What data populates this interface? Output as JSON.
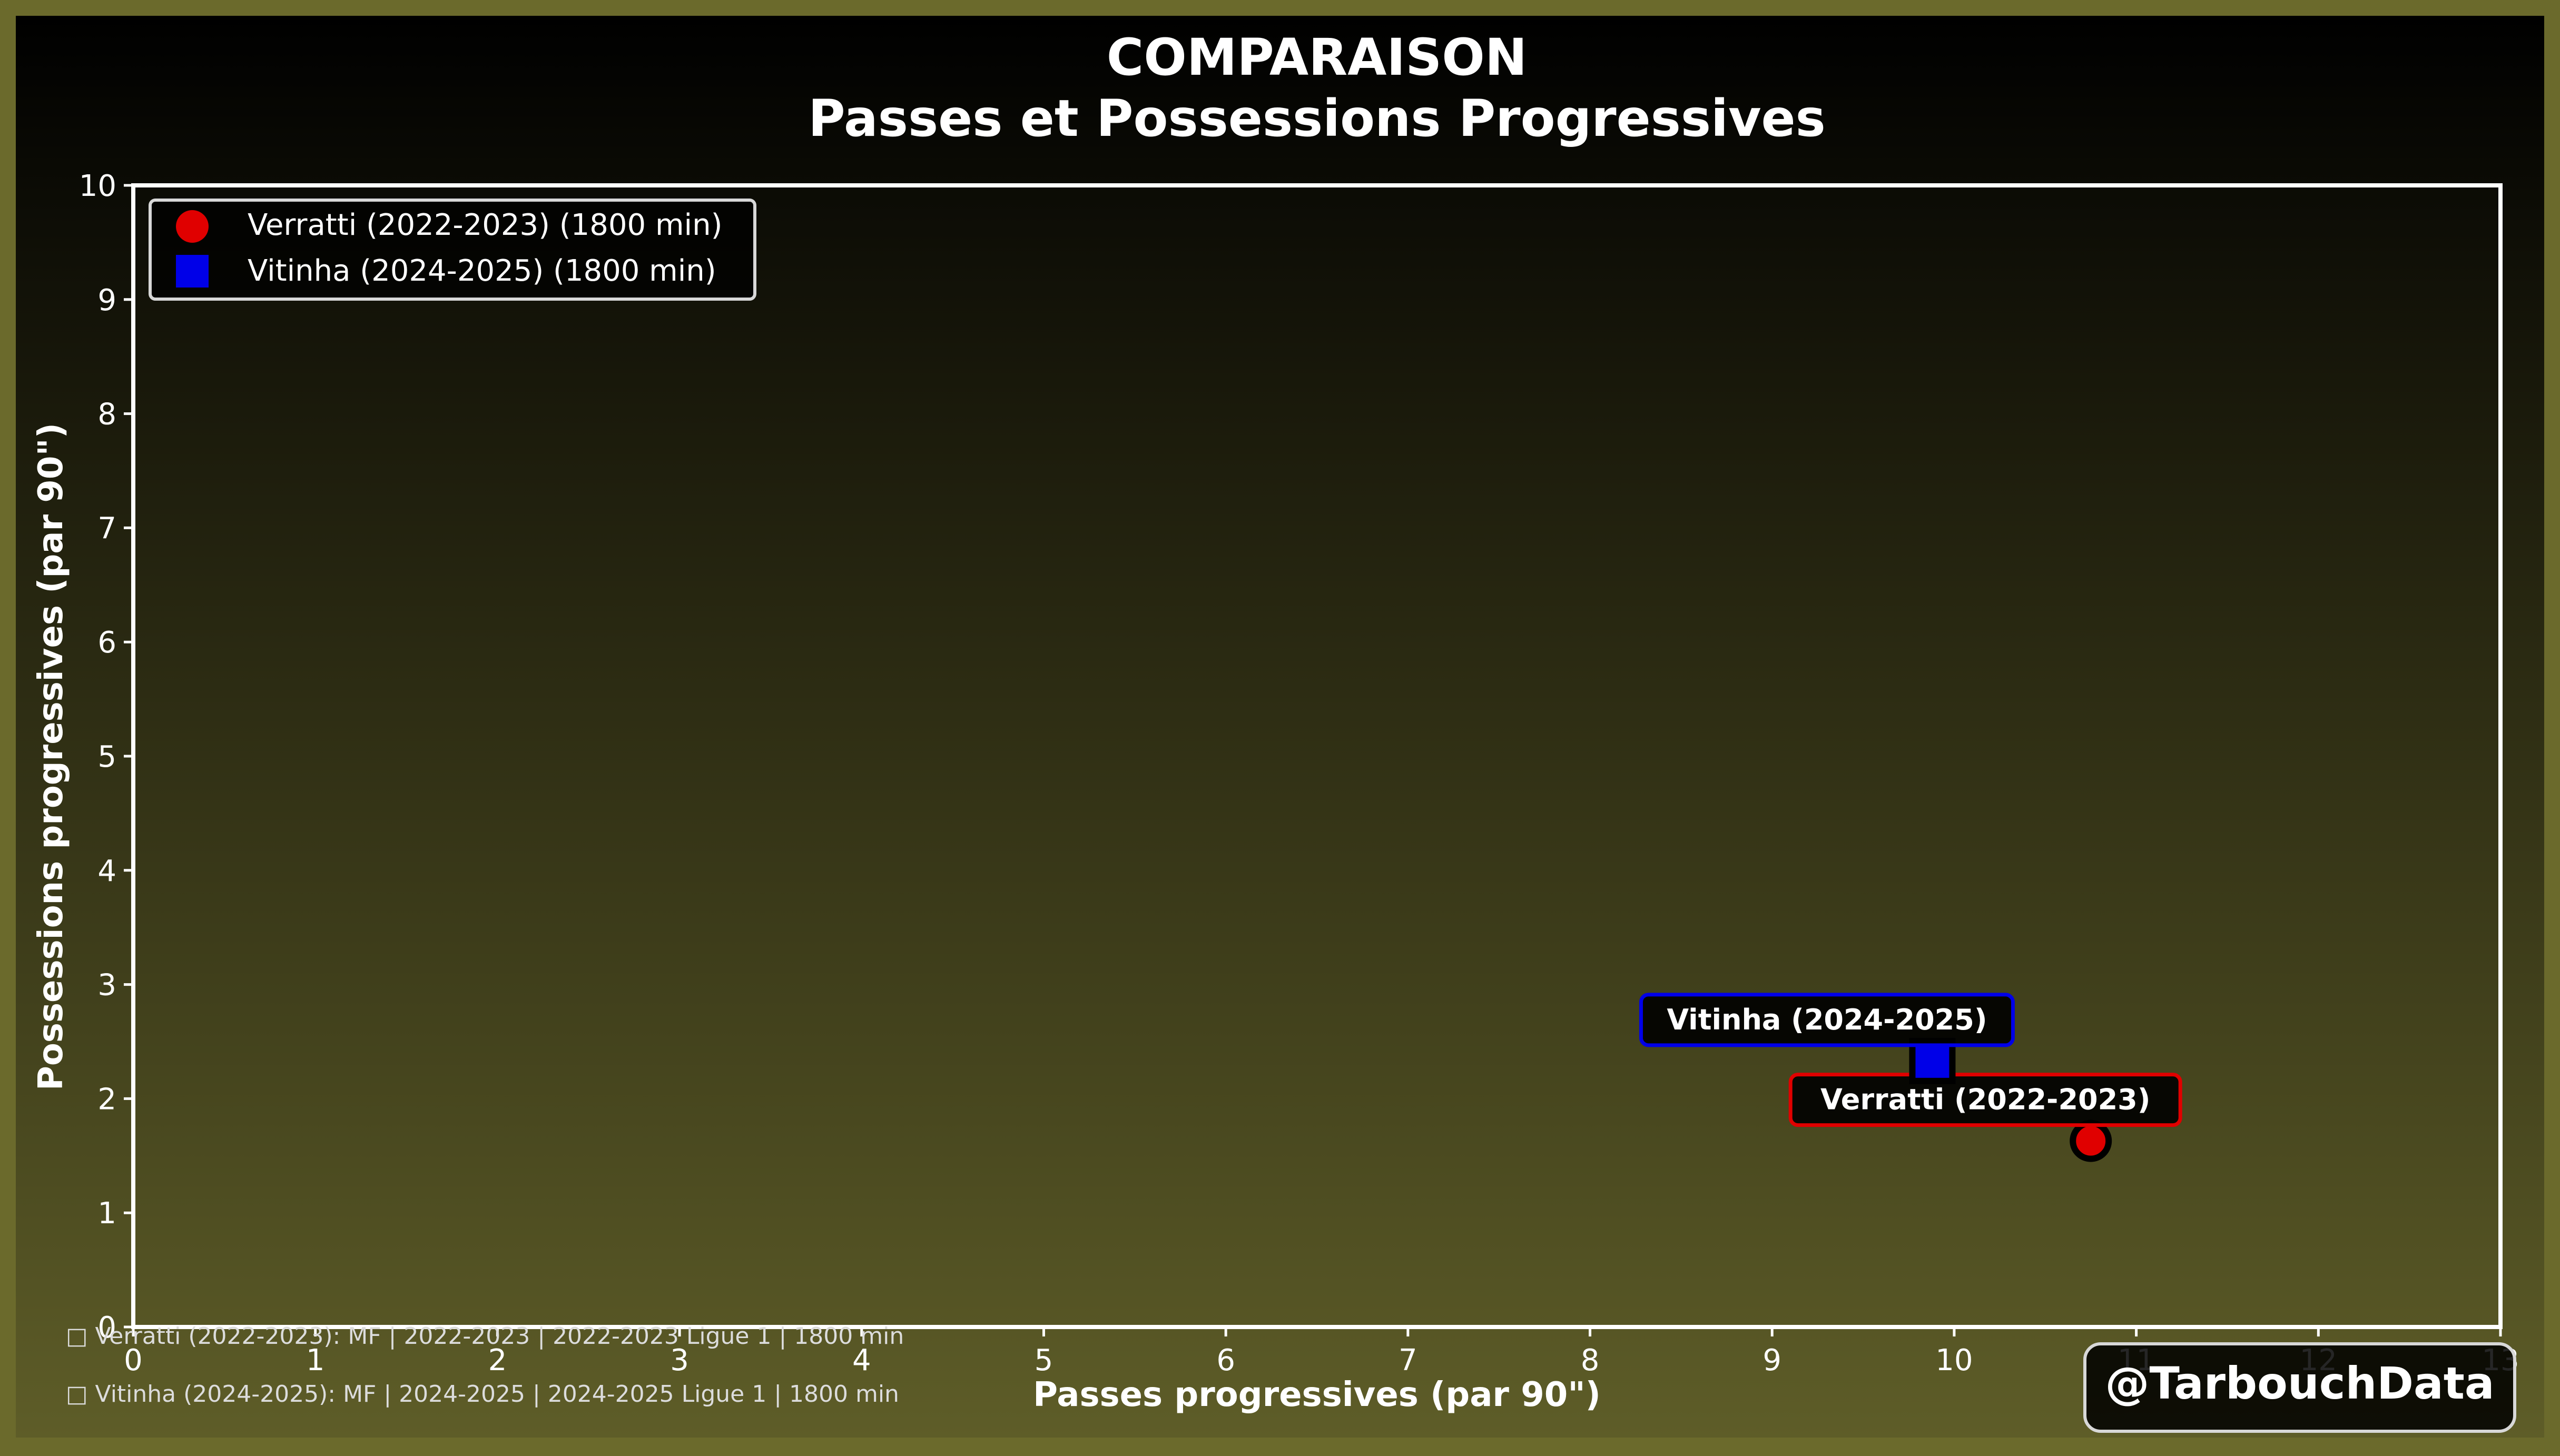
{
  "title_line1": "COMPARAISON",
  "title_line2": "Passes et Possessions Progressives",
  "watermark": "@TarbouchData",
  "footnotes": [
    "□ Verratti (2022-2023): MF | 2022-2023 | 2022-2023 Ligue 1 | 1800 min",
    "□ Vitinha (2024-2025): MF | 2024-2025 | 2024-2025 Ligue 1 | 1800 min"
  ],
  "colors": {
    "frame": "#6b6a2c",
    "bg_top": "#000000",
    "bg_bottom": "#5e5d28",
    "text": "#ffffff",
    "verratti": "#e00000",
    "vitinha": "#0000e8"
  },
  "chart_data": {
    "type": "scatter",
    "title": "COMPARAISON\nPasses et Possessions Progressives",
    "xlabel": "Passes progressives (par 90\")",
    "ylabel": "Possessions progressives (par 90\")",
    "xlim": [
      0,
      13
    ],
    "ylim": [
      0,
      10
    ],
    "xticks": [
      "0",
      "1",
      "2",
      "3",
      "4",
      "5",
      "6",
      "7",
      "8",
      "9",
      "10",
      "11",
      "12",
      "13"
    ],
    "yticks": [
      "0",
      "1",
      "2",
      "3",
      "4",
      "5",
      "6",
      "7",
      "8",
      "9",
      "10"
    ],
    "grid": false,
    "legend_position": "top-left",
    "series": [
      {
        "name": "Verratti (2022-2023) (1800 min)",
        "label": "Verratti (2022-2023)",
        "marker": "circle",
        "color": "#e00000",
        "x": [
          10.75
        ],
        "y": [
          1.63
        ]
      },
      {
        "name": "Vitinha (2024-2025) (1800 min)",
        "label": "Vitinha (2024-2025)",
        "marker": "square",
        "color": "#0000e8",
        "x": [
          9.88
        ],
        "y": [
          2.33
        ]
      }
    ]
  }
}
